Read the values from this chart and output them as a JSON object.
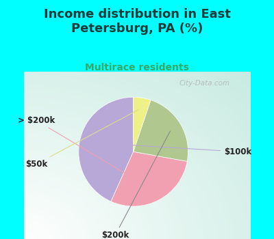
{
  "title": "Income distribution in East\nPetersburg, PA (%)",
  "subtitle": "Multirace residents",
  "title_color": "#1a3a3a",
  "subtitle_color": "#33aa66",
  "bg_cyan": "#00ffff",
  "bg_chart_left": "#c8e8d8",
  "bg_chart_right": "#f0f0f8",
  "watermark": "City-Data.com",
  "slices": [
    {
      "label": "$100k",
      "value": 42,
      "color": "#b8a8d8"
    },
    {
      "label": "> $200k",
      "value": 28,
      "color": "#f0a0b0"
    },
    {
      "label": "$200k",
      "value": 22,
      "color": "#b0c890"
    },
    {
      "label": "$50k",
      "value": 5,
      "color": "#eef088"
    }
  ],
  "startangle": 90,
  "figsize": [
    4.0,
    3.5
  ],
  "dpi": 100,
  "title_fontsize": 13,
  "subtitle_fontsize": 10,
  "label_fontsize": 8.5
}
